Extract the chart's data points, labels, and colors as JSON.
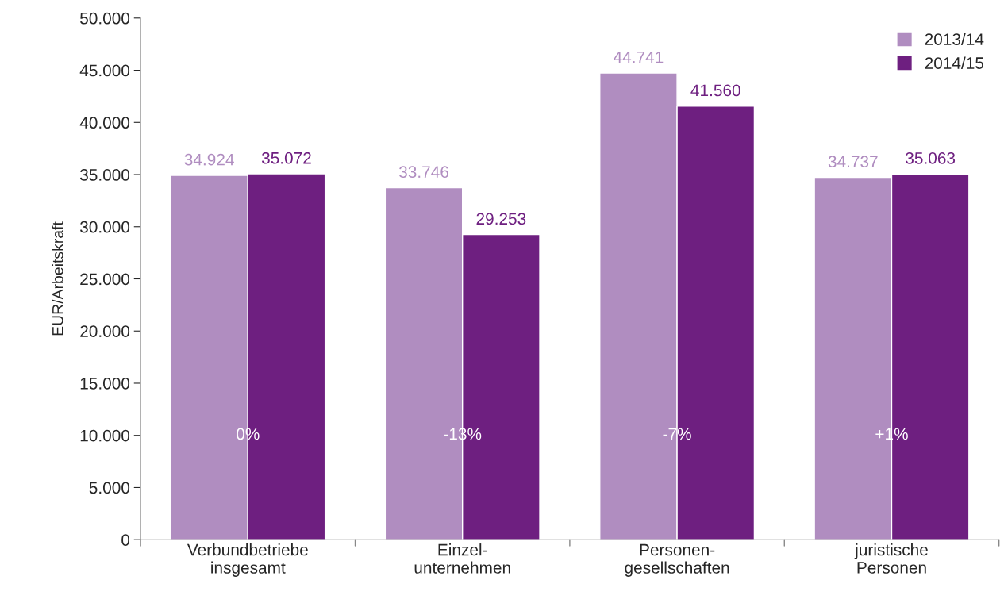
{
  "chart_data": {
    "type": "bar",
    "ylabel": "EUR/Arbeitskraft",
    "categories": [
      "Verbundbetriebe\ninsgesamt",
      "Einzel-\nunternehmen",
      "Personen-\ngesellschaften",
      "juristische\nPersonen"
    ],
    "series": [
      {
        "name": "2013/14",
        "color": "#b08dc0",
        "values": [
          34924,
          33746,
          44741,
          34737
        ],
        "value_labels": [
          "34.924",
          "33.746",
          "44.741",
          "34.737"
        ]
      },
      {
        "name": "2014/15",
        "color": "#6e1f80",
        "values": [
          35072,
          29253,
          41560,
          35063
        ],
        "value_labels": [
          "35.072",
          "29.253",
          "41.560",
          "35.063"
        ]
      }
    ],
    "ylim": [
      0,
      50000
    ],
    "yticks": [
      0,
      {
        "value": 5000,
        "label": "5.000"
      },
      {
        "value": 10000,
        "label": "10.000"
      },
      {
        "value": 15000,
        "label": "15.000"
      },
      {
        "value": 20000,
        "label": "20.000"
      },
      {
        "value": 25000,
        "label": "25.000"
      },
      {
        "value": 30000,
        "label": "30.000"
      },
      {
        "value": 35000,
        "label": "35.000"
      },
      {
        "value": 40000,
        "label": "40.000"
      },
      {
        "value": 45000,
        "label": "45.000"
      },
      {
        "value": 50000,
        "label": "50.000"
      }
    ],
    "annotations": [
      {
        "text": "0%",
        "x": "Verbundbetriebe\ninsgesamt",
        "y": 10000
      },
      {
        "text": "-13%",
        "x": "Einzel-\nunternehmen",
        "y": 10000
      },
      {
        "text": "-7%",
        "x": "Personen-\ngesellschaften",
        "y": 10000
      },
      {
        "text": "+1%",
        "x": "juristische\nPersonen",
        "y": 10000
      }
    ],
    "grid": false,
    "legend": "top right"
  }
}
